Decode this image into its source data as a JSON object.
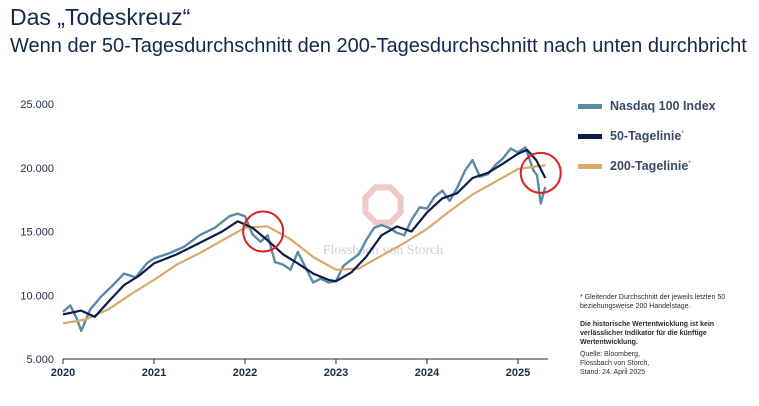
{
  "header": {
    "title": "Das „Todeskreuz“",
    "subtitle": "Wenn der 50-Tagesdurchschnitt den 200-Tagesdurchschnitt nach unten durchbricht"
  },
  "watermark": {
    "text": "Flossbach von Storch"
  },
  "colors": {
    "nasdaq": "#5b8aa6",
    "ma50": "#0d1b4b",
    "ma200": "#d9aa6a",
    "highlight": "#e02020",
    "axis": "#1c2b4a"
  },
  "legend": {
    "items": [
      {
        "label": "Nasdaq 100 Index",
        "sup": ""
      },
      {
        "label": "50-Tagelinie",
        "sup": "*"
      },
      {
        "label": "200-Tagelinie",
        "sup": "*"
      }
    ]
  },
  "notes": {
    "footnote": "* Gleitender Durchschnitt der jeweils letzten 50 beziehungsweise 200 Handelstage.",
    "disclaimer": "Die historische Wertentwicklung ist kein verlässlicher Indikator für die künftige Wertentwicklung.",
    "source": "Quelle: Bloomberg, Flossbach von Storch, Stand: 24. April 2025"
  },
  "chart_data": {
    "type": "line",
    "x_range": [
      2020.0,
      2025.33
    ],
    "ylim": [
      5000,
      25000
    ],
    "x_ticks": [
      {
        "value": 2020,
        "label": "2020"
      },
      {
        "value": 2021,
        "label": "2021"
      },
      {
        "value": 2022,
        "label": "2022"
      },
      {
        "value": 2023,
        "label": "2023"
      },
      {
        "value": 2024,
        "label": "2024"
      },
      {
        "value": 2025,
        "label": "2025"
      }
    ],
    "y_ticks": [
      {
        "value": 5000,
        "label": "5.000"
      },
      {
        "value": 10000,
        "label": "10.000"
      },
      {
        "value": 15000,
        "label": "15.000"
      },
      {
        "value": 20000,
        "label": "20.000"
      },
      {
        "value": 25000,
        "label": "25.000"
      }
    ],
    "grid": false,
    "legend_position": "right",
    "highlights": [
      {
        "x": 2022.2,
        "y": 15000,
        "label": "Todeskreuz 2022"
      },
      {
        "x": 2025.25,
        "y": 19600,
        "label": "Todeskreuz 2025"
      }
    ],
    "series": [
      {
        "name": "Nasdaq 100 Index",
        "x": [
          2020.0,
          2020.08,
          2020.15,
          2020.2,
          2020.3,
          2020.42,
          2020.55,
          2020.67,
          2020.8,
          2020.92,
          2021.0,
          2021.17,
          2021.33,
          2021.5,
          2021.67,
          2021.83,
          2021.92,
          2022.0,
          2022.08,
          2022.17,
          2022.25,
          2022.33,
          2022.42,
          2022.5,
          2022.58,
          2022.67,
          2022.75,
          2022.83,
          2022.92,
          2023.0,
          2023.08,
          2023.17,
          2023.25,
          2023.33,
          2023.42,
          2023.5,
          2023.58,
          2023.67,
          2023.75,
          2023.83,
          2023.92,
          2024.0,
          2024.08,
          2024.17,
          2024.25,
          2024.33,
          2024.42,
          2024.5,
          2024.58,
          2024.67,
          2024.75,
          2024.83,
          2024.92,
          2025.0,
          2025.08,
          2025.13,
          2025.17,
          2025.21,
          2025.25,
          2025.3
        ],
        "values": [
          8700,
          9200,
          8200,
          7200,
          8900,
          9900,
          10800,
          11700,
          11400,
          12500,
          12900,
          13300,
          13800,
          14700,
          15300,
          16200,
          16400,
          16200,
          14800,
          14200,
          14700,
          12600,
          12400,
          12000,
          13400,
          12100,
          11000,
          11300,
          11000,
          11100,
          12300,
          12800,
          13200,
          14300,
          15300,
          15500,
          15300,
          14900,
          14700,
          15900,
          16900,
          16800,
          17700,
          18200,
          17400,
          18400,
          19800,
          20600,
          19300,
          19500,
          20200,
          20700,
          21500,
          21200,
          21600,
          20600,
          19800,
          19400,
          17200,
          18500
        ]
      },
      {
        "name": "50-Tagelinie",
        "x": [
          2020.0,
          2020.2,
          2020.35,
          2020.5,
          2020.67,
          2020.83,
          2021.0,
          2021.25,
          2021.5,
          2021.75,
          2021.92,
          2022.08,
          2022.25,
          2022.42,
          2022.58,
          2022.75,
          2022.92,
          2023.0,
          2023.17,
          2023.33,
          2023.5,
          2023.67,
          2023.83,
          2024.0,
          2024.17,
          2024.33,
          2024.5,
          2024.67,
          2024.83,
          2025.0,
          2025.1,
          2025.2,
          2025.3
        ],
        "values": [
          8500,
          8800,
          8300,
          9500,
          10800,
          11500,
          12500,
          13200,
          14100,
          15000,
          15800,
          15300,
          14300,
          13200,
          12500,
          11700,
          11200,
          11100,
          11800,
          13000,
          14700,
          15400,
          15000,
          16500,
          17600,
          18000,
          19200,
          19600,
          20300,
          21100,
          21400,
          20600,
          19200
        ]
      },
      {
        "name": "200-Tagelinie",
        "x": [
          2020.0,
          2020.25,
          2020.5,
          2020.75,
          2021.0,
          2021.25,
          2021.5,
          2021.75,
          2022.0,
          2022.25,
          2022.5,
          2022.75,
          2023.0,
          2023.25,
          2023.5,
          2023.75,
          2024.0,
          2024.25,
          2024.5,
          2024.75,
          2025.0,
          2025.3
        ],
        "values": [
          7800,
          8100,
          8900,
          10100,
          11200,
          12400,
          13300,
          14300,
          15300,
          15400,
          14400,
          13000,
          12000,
          12100,
          13100,
          14100,
          15200,
          16600,
          17900,
          18900,
          19900,
          20200
        ]
      }
    ]
  }
}
